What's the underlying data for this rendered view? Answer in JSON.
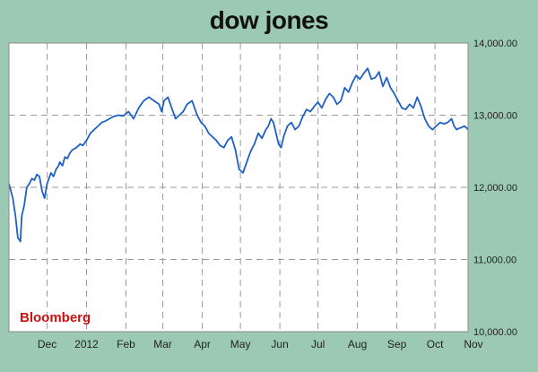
{
  "chart_data": {
    "type": "line",
    "title": "dow jones",
    "source_label": "Bloomberg",
    "xlabel": "",
    "ylabel": "",
    "ylim": [
      10000,
      14000
    ],
    "xlim": [
      0,
      361
    ],
    "grid": true,
    "x_tick_labels": [
      "Dec",
      "2012",
      "Feb",
      "Mar",
      "Apr",
      "May",
      "Jun",
      "Jul",
      "Aug",
      "Sep",
      "Oct",
      "Nov"
    ],
    "x_tick_positions": [
      30,
      61,
      92,
      121,
      152,
      182,
      213,
      243,
      274,
      305,
      335,
      366
    ],
    "y_ticks": [
      10000,
      11000,
      12000,
      13000,
      14000
    ],
    "y_tick_labels": [
      "10,000.00",
      "11,000.00",
      "12,000.00",
      "13,000.00",
      "14,000.00"
    ],
    "colors": {
      "line": "#1f5fc8",
      "source": "#cc1111",
      "plot_bg": "#ffffff",
      "frame_bg": "#9cc9b4"
    },
    "series": [
      {
        "x": [
          0,
          3,
          5,
          7,
          9,
          10,
          12,
          14,
          16,
          18,
          20,
          22,
          24,
          26,
          28,
          30,
          33,
          35,
          37,
          39,
          40,
          42,
          44,
          46,
          48,
          50,
          53,
          56,
          58,
          61,
          64,
          67,
          70,
          73,
          76,
          79,
          82,
          86,
          90,
          94,
          98,
          102,
          106,
          110,
          114,
          118,
          120,
          122,
          125,
          128,
          131,
          134,
          137,
          140,
          144,
          148,
          151,
          154,
          157,
          160,
          163,
          166,
          169,
          172,
          175,
          178,
          181,
          184,
          187,
          190,
          193,
          196,
          199,
          202,
          204,
          206,
          208,
          210,
          212,
          214,
          216,
          219,
          222,
          225,
          228,
          231,
          234,
          237,
          240,
          243,
          246,
          249,
          252,
          255,
          258,
          261,
          264,
          267,
          270,
          273,
          276,
          279,
          282,
          285,
          288,
          291,
          294,
          297,
          300,
          303,
          306,
          309,
          312,
          315,
          318,
          321,
          324,
          327,
          330,
          333,
          336,
          339,
          342,
          345,
          348,
          350,
          352,
          354,
          356,
          358,
          360,
          361
        ],
        "values": [
          12050,
          11850,
          11620,
          11300,
          11250,
          11600,
          11750,
          12000,
          12050,
          12120,
          12100,
          12180,
          12150,
          11950,
          11850,
          12050,
          12200,
          12150,
          12250,
          12300,
          12350,
          12300,
          12420,
          12400,
          12480,
          12520,
          12550,
          12600,
          12580,
          12650,
          12750,
          12800,
          12850,
          12900,
          12920,
          12950,
          12980,
          13000,
          12990,
          13050,
          12950,
          13100,
          13200,
          13250,
          13200,
          13150,
          13050,
          13200,
          13250,
          13100,
          12950,
          13000,
          13050,
          13150,
          13200,
          13000,
          12900,
          12850,
          12750,
          12700,
          12650,
          12580,
          12550,
          12650,
          12700,
          12520,
          12250,
          12200,
          12350,
          12500,
          12600,
          12750,
          12680,
          12800,
          12850,
          12950,
          12900,
          12750,
          12600,
          12550,
          12700,
          12850,
          12900,
          12800,
          12850,
          12980,
          13080,
          13050,
          13120,
          13180,
          13100,
          13220,
          13300,
          13250,
          13150,
          13200,
          13380,
          13320,
          13450,
          13550,
          13500,
          13580,
          13650,
          13500,
          13520,
          13600,
          13400,
          13520,
          13380,
          13300,
          13200,
          13100,
          13080,
          13150,
          13100,
          13250,
          13120,
          12950,
          12850,
          12800,
          12850,
          12900,
          12880,
          12900,
          12950,
          12850,
          12800,
          12820,
          12830,
          12850,
          12820,
          12800
        ]
      }
    ]
  }
}
